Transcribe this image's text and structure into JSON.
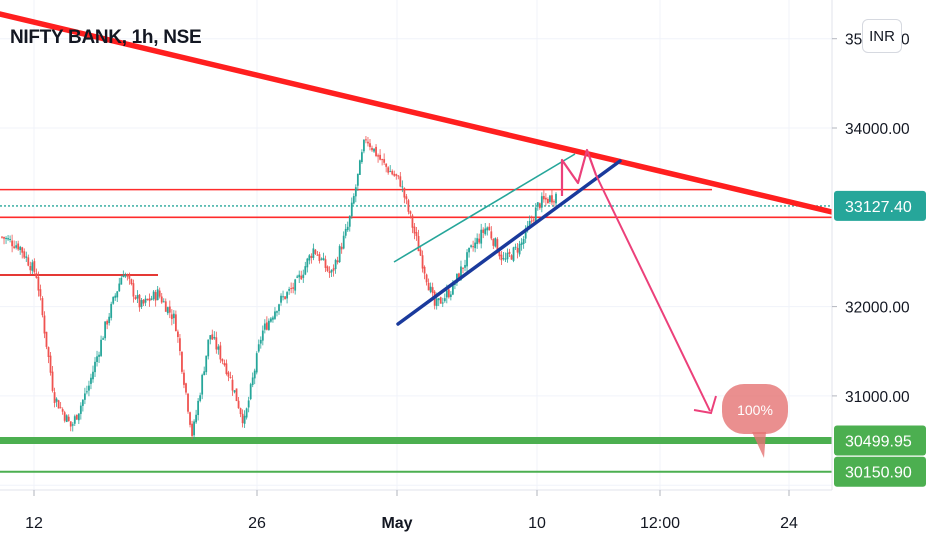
{
  "header": {
    "title": "NIFTY BANK, 1h, NSE",
    "currency_label": "INR"
  },
  "price_axis": {
    "tick_labels": [
      "35000.00",
      "34000.00",
      "32000.00",
      "31000.00"
    ]
  },
  "time_axis": {
    "tick_labels": [
      "12",
      "26",
      "May",
      "10",
      "12:00",
      "24"
    ]
  },
  "markers": {
    "last_price": {
      "label": "33127.40",
      "color": "#26a69a"
    },
    "support_1": {
      "label": "30499.95",
      "color": "#4caf50"
    },
    "support_2": {
      "label": "30150.90",
      "color": "#4caf50"
    }
  },
  "annotation": {
    "target_label": "100%"
  },
  "colors": {
    "up_candle": "#26a69a",
    "down_candle": "#ef5350",
    "trendline_resistance": "#ff1f1f",
    "channel_lower": "#1a3a9c",
    "channel_upper": "#26a69a",
    "projection_arrow": "#ec407a",
    "support_line": "#4caf50",
    "target_bubble": "#e57373"
  },
  "chart_data": {
    "type": "candlestick",
    "title": "NIFTY BANK, 1h, NSE",
    "currency": "INR",
    "y_axis": {
      "range": [
        29900,
        35300
      ],
      "ticks": [
        35000,
        34000,
        32000,
        31000
      ]
    },
    "x_axis": {
      "ticks": [
        "12",
        "26",
        "May",
        "10",
        "12:00",
        "24"
      ]
    },
    "last_price": 33127.4,
    "horizontal_levels": [
      {
        "name": "support",
        "value": 30499.95
      },
      {
        "name": "support",
        "value": 30150.9
      }
    ],
    "zones": [
      {
        "name": "resistance",
        "values": [
          33310,
          33000
        ]
      }
    ],
    "swing_path": [
      32780,
      32680,
      32350,
      31000,
      30650,
      31100,
      31800,
      32400,
      32000,
      32150,
      31850,
      30550,
      31700,
      31300,
      30700,
      31700,
      32050,
      32250,
      32650,
      32350,
      32900,
      33900,
      33600,
      33400,
      32700,
      32000,
      32200,
      32600,
      32900,
      32500,
      32700,
      33150,
      33250
    ],
    "forecast": {
      "from": 33650,
      "to": 30620,
      "target_pct": "100%"
    }
  }
}
